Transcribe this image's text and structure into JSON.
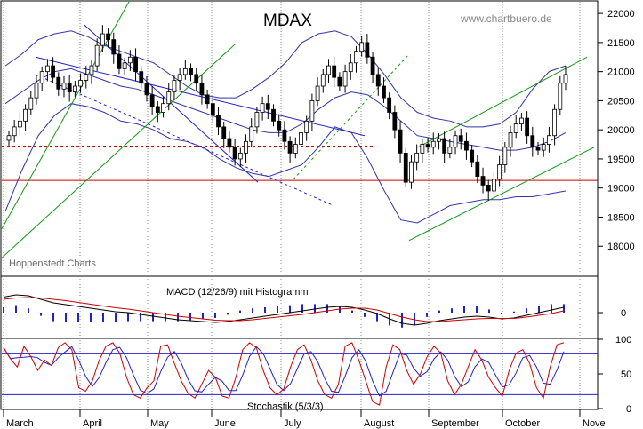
{
  "title": "MDAX",
  "watermark": "www.chartbuero.de",
  "source_label": "Hoppenstedt Charts",
  "colors": {
    "candle_up": "#ffffff",
    "candle_down": "#000000",
    "bollinger": "#3333aa",
    "blue_channel": "#2222cc",
    "green_channel": "#119911",
    "red_line": "#cc0000",
    "macd_line": "#000000",
    "signal_line": "#cc0000",
    "histogram": "#2222cc",
    "stoch_k": "#cc0000",
    "stoch_d": "#2222cc"
  },
  "chart_data": [
    {
      "type": "candlestick",
      "title": "MDAX",
      "ylim": [
        17500,
        22200
      ],
      "yticks": [
        18000,
        18500,
        19000,
        19500,
        20000,
        20500,
        21000,
        21500,
        22000
      ],
      "months": [
        "March",
        "April",
        "May",
        "June",
        "July",
        "August",
        "September",
        "October",
        "Nove"
      ],
      "closes": [
        19900,
        20050,
        20150,
        20350,
        20550,
        20800,
        21000,
        21100,
        20900,
        20700,
        20800,
        20650,
        20750,
        20850,
        20950,
        21100,
        21450,
        21650,
        21550,
        21300,
        21050,
        21150,
        21250,
        21000,
        20800,
        20600,
        20400,
        20300,
        20450,
        20650,
        20850,
        20950,
        21050,
        20950,
        20800,
        20600,
        20450,
        20250,
        20050,
        19850,
        19700,
        19500,
        19600,
        19800,
        20050,
        20300,
        20450,
        20350,
        20150,
        20000,
        19800,
        19600,
        19750,
        19950,
        20150,
        20500,
        20750,
        20950,
        21100,
        20900,
        20750,
        21000,
        21150,
        21350,
        21500,
        21250,
        20950,
        20750,
        20550,
        20300,
        20000,
        19600,
        19100,
        19450,
        19600,
        19750,
        19700,
        19800,
        19850,
        19600,
        19700,
        19900,
        19800,
        19650,
        19450,
        19200,
        19050,
        18950,
        19150,
        19400,
        19700,
        19950,
        20100,
        20200,
        19900,
        19700,
        19650,
        19750,
        19900,
        20350,
        20800,
        20950
      ],
      "bollinger_mid": [
        20450,
        20650,
        20850,
        21000,
        21050,
        20950,
        20850,
        20750,
        20700,
        20600,
        20500,
        20400,
        20300,
        20200,
        20100,
        20000,
        19950,
        19950,
        20100,
        20350,
        20550,
        20650,
        20600,
        20400,
        20150,
        19900,
        19850,
        19800,
        19750,
        19700,
        19650,
        19650,
        19700,
        19800,
        19950
      ],
      "bollinger_upper": [
        21100,
        21300,
        21550,
        21650,
        21700,
        21600,
        21450,
        21350,
        21250,
        21150,
        20950,
        20750,
        20600,
        20550,
        20550,
        20700,
        20900,
        21150,
        21500,
        21650,
        21700,
        21600,
        21300,
        20950,
        20550,
        20300,
        20200,
        20150,
        20050,
        20050,
        20100,
        20300,
        20700,
        21000,
        21100
      ],
      "bollinger_lower": [
        18600,
        19300,
        19900,
        20250,
        20450,
        20400,
        20300,
        20150,
        20100,
        20000,
        19850,
        19800,
        19700,
        19500,
        19350,
        19250,
        19200,
        19300,
        19400,
        19700,
        20050,
        19950,
        19500,
        18950,
        18450,
        18400,
        18550,
        18700,
        18750,
        18800,
        18800,
        18850,
        18850,
        18900,
        18950
      ],
      "support_level": 19130,
      "dashed_level": 19720,
      "xlabel": "",
      "ylabel": ""
    },
    {
      "type": "line",
      "title": "MACD (12/26/9) mit Histogramm",
      "yticks": [
        0
      ],
      "macd": [
        35,
        40,
        38,
        30,
        22,
        18,
        14,
        10,
        6,
        2,
        0,
        -4,
        -8,
        -12,
        -16,
        -18,
        -20,
        -22,
        -20,
        -16,
        -12,
        -8,
        -4,
        0,
        4,
        8,
        12,
        14,
        12,
        6,
        -2,
        -14,
        -24,
        -28,
        -24,
        -18,
        -14,
        -10,
        -8,
        -10,
        -14,
        -12,
        -6,
        0,
        6,
        12
      ],
      "signal": [
        30,
        33,
        34,
        33,
        30,
        27,
        23,
        19,
        15,
        11,
        8,
        4,
        0,
        -4,
        -8,
        -11,
        -14,
        -17,
        -18,
        -18,
        -16,
        -13,
        -10,
        -7,
        -4,
        0,
        4,
        8,
        10,
        10,
        6,
        -2,
        -10,
        -16,
        -20,
        -20,
        -18,
        -16,
        -14,
        -13,
        -13,
        -13,
        -10,
        -6,
        -2,
        4
      ]
    },
    {
      "type": "line",
      "title": "Stochastik (5/3/3)",
      "ylim": [
        0,
        100
      ],
      "yticks": [
        0,
        50,
        100
      ],
      "lines": [
        20,
        80
      ],
      "k": [
        88,
        72,
        60,
        90,
        75,
        55,
        70,
        62,
        88,
        95,
        85,
        30,
        25,
        40,
        70,
        90,
        95,
        80,
        45,
        20,
        15,
        30,
        40,
        90,
        92,
        65,
        40,
        22,
        15,
        35,
        55,
        45,
        18,
        15,
        45,
        85,
        95,
        88,
        55,
        30,
        20,
        28,
        60,
        85,
        92,
        70,
        40,
        20,
        15,
        35,
        90,
        95,
        70,
        40,
        10,
        5,
        60,
        92,
        85,
        55,
        35,
        50,
        75,
        90,
        80,
        40,
        20,
        35,
        60,
        85,
        70,
        45,
        30,
        18,
        55,
        80,
        85,
        65,
        30,
        15,
        60,
        92,
        95
      ]
    }
  ]
}
